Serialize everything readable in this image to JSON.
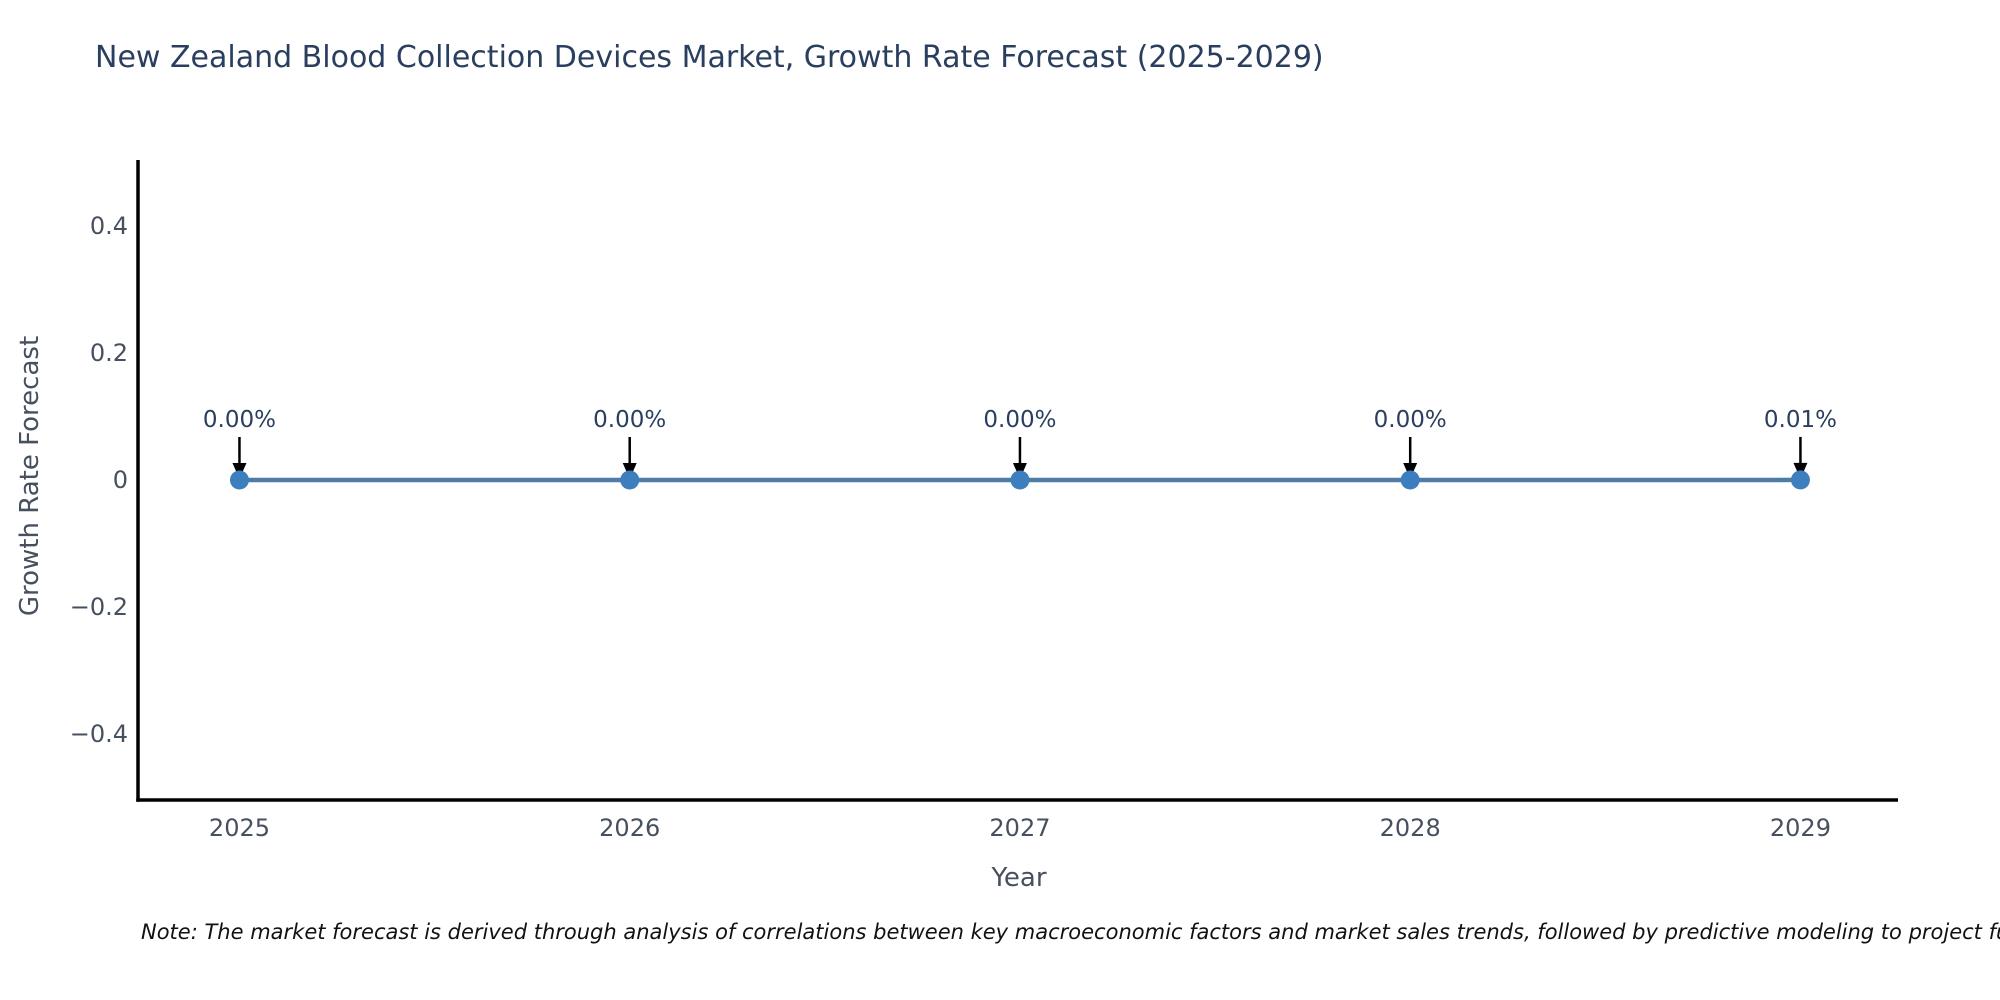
{
  "title": "New Zealand Blood Collection Devices Market, Growth Rate Forecast (2025-2029)",
  "note": "Note: The market forecast is derived through analysis of correlations between key macroeconomic factors and market sales trends, followed by predictive modeling to project future sales.",
  "chart_data": {
    "type": "line",
    "title": "New Zealand Blood Collection Devices Market, Growth Rate Forecast (2025-2029)",
    "xlabel": "Year",
    "ylabel": "Growth Rate Forecast",
    "x": [
      2025,
      2026,
      2027,
      2028,
      2029
    ],
    "series": [
      {
        "name": "Growth Rate Forecast",
        "values": [
          0.0,
          0.0,
          0.0,
          0.0,
          0.0001
        ]
      }
    ],
    "point_labels": [
      "0.00%",
      "0.00%",
      "0.00%",
      "0.00%",
      "0.01%"
    ],
    "x_ticks": {
      "values": [
        2025,
        2026,
        2027,
        2028,
        2029
      ],
      "labels": [
        "2025",
        "2026",
        "2027",
        "2028",
        "2029"
      ]
    },
    "y_ticks": {
      "values": [
        0.4,
        0.2,
        0,
        -0.2,
        -0.4
      ],
      "labels": [
        "0.4",
        "0.2",
        "0",
        "−0.2",
        "−0.4"
      ]
    },
    "xlim": [
      2024.74,
      2029.25
    ],
    "ylim": [
      -0.504,
      0.504
    ],
    "grid": false,
    "legend": false,
    "annotations_have_arrows": true,
    "colors": {
      "line": "#4e7ca6",
      "marker": "#3d7ebf",
      "axis": "#000000",
      "arrow": "#000000",
      "title": "#2a3f5f",
      "tick_label": "#47505f",
      "annotation_text": "#2a3f5f",
      "background": "#ffffff"
    }
  }
}
